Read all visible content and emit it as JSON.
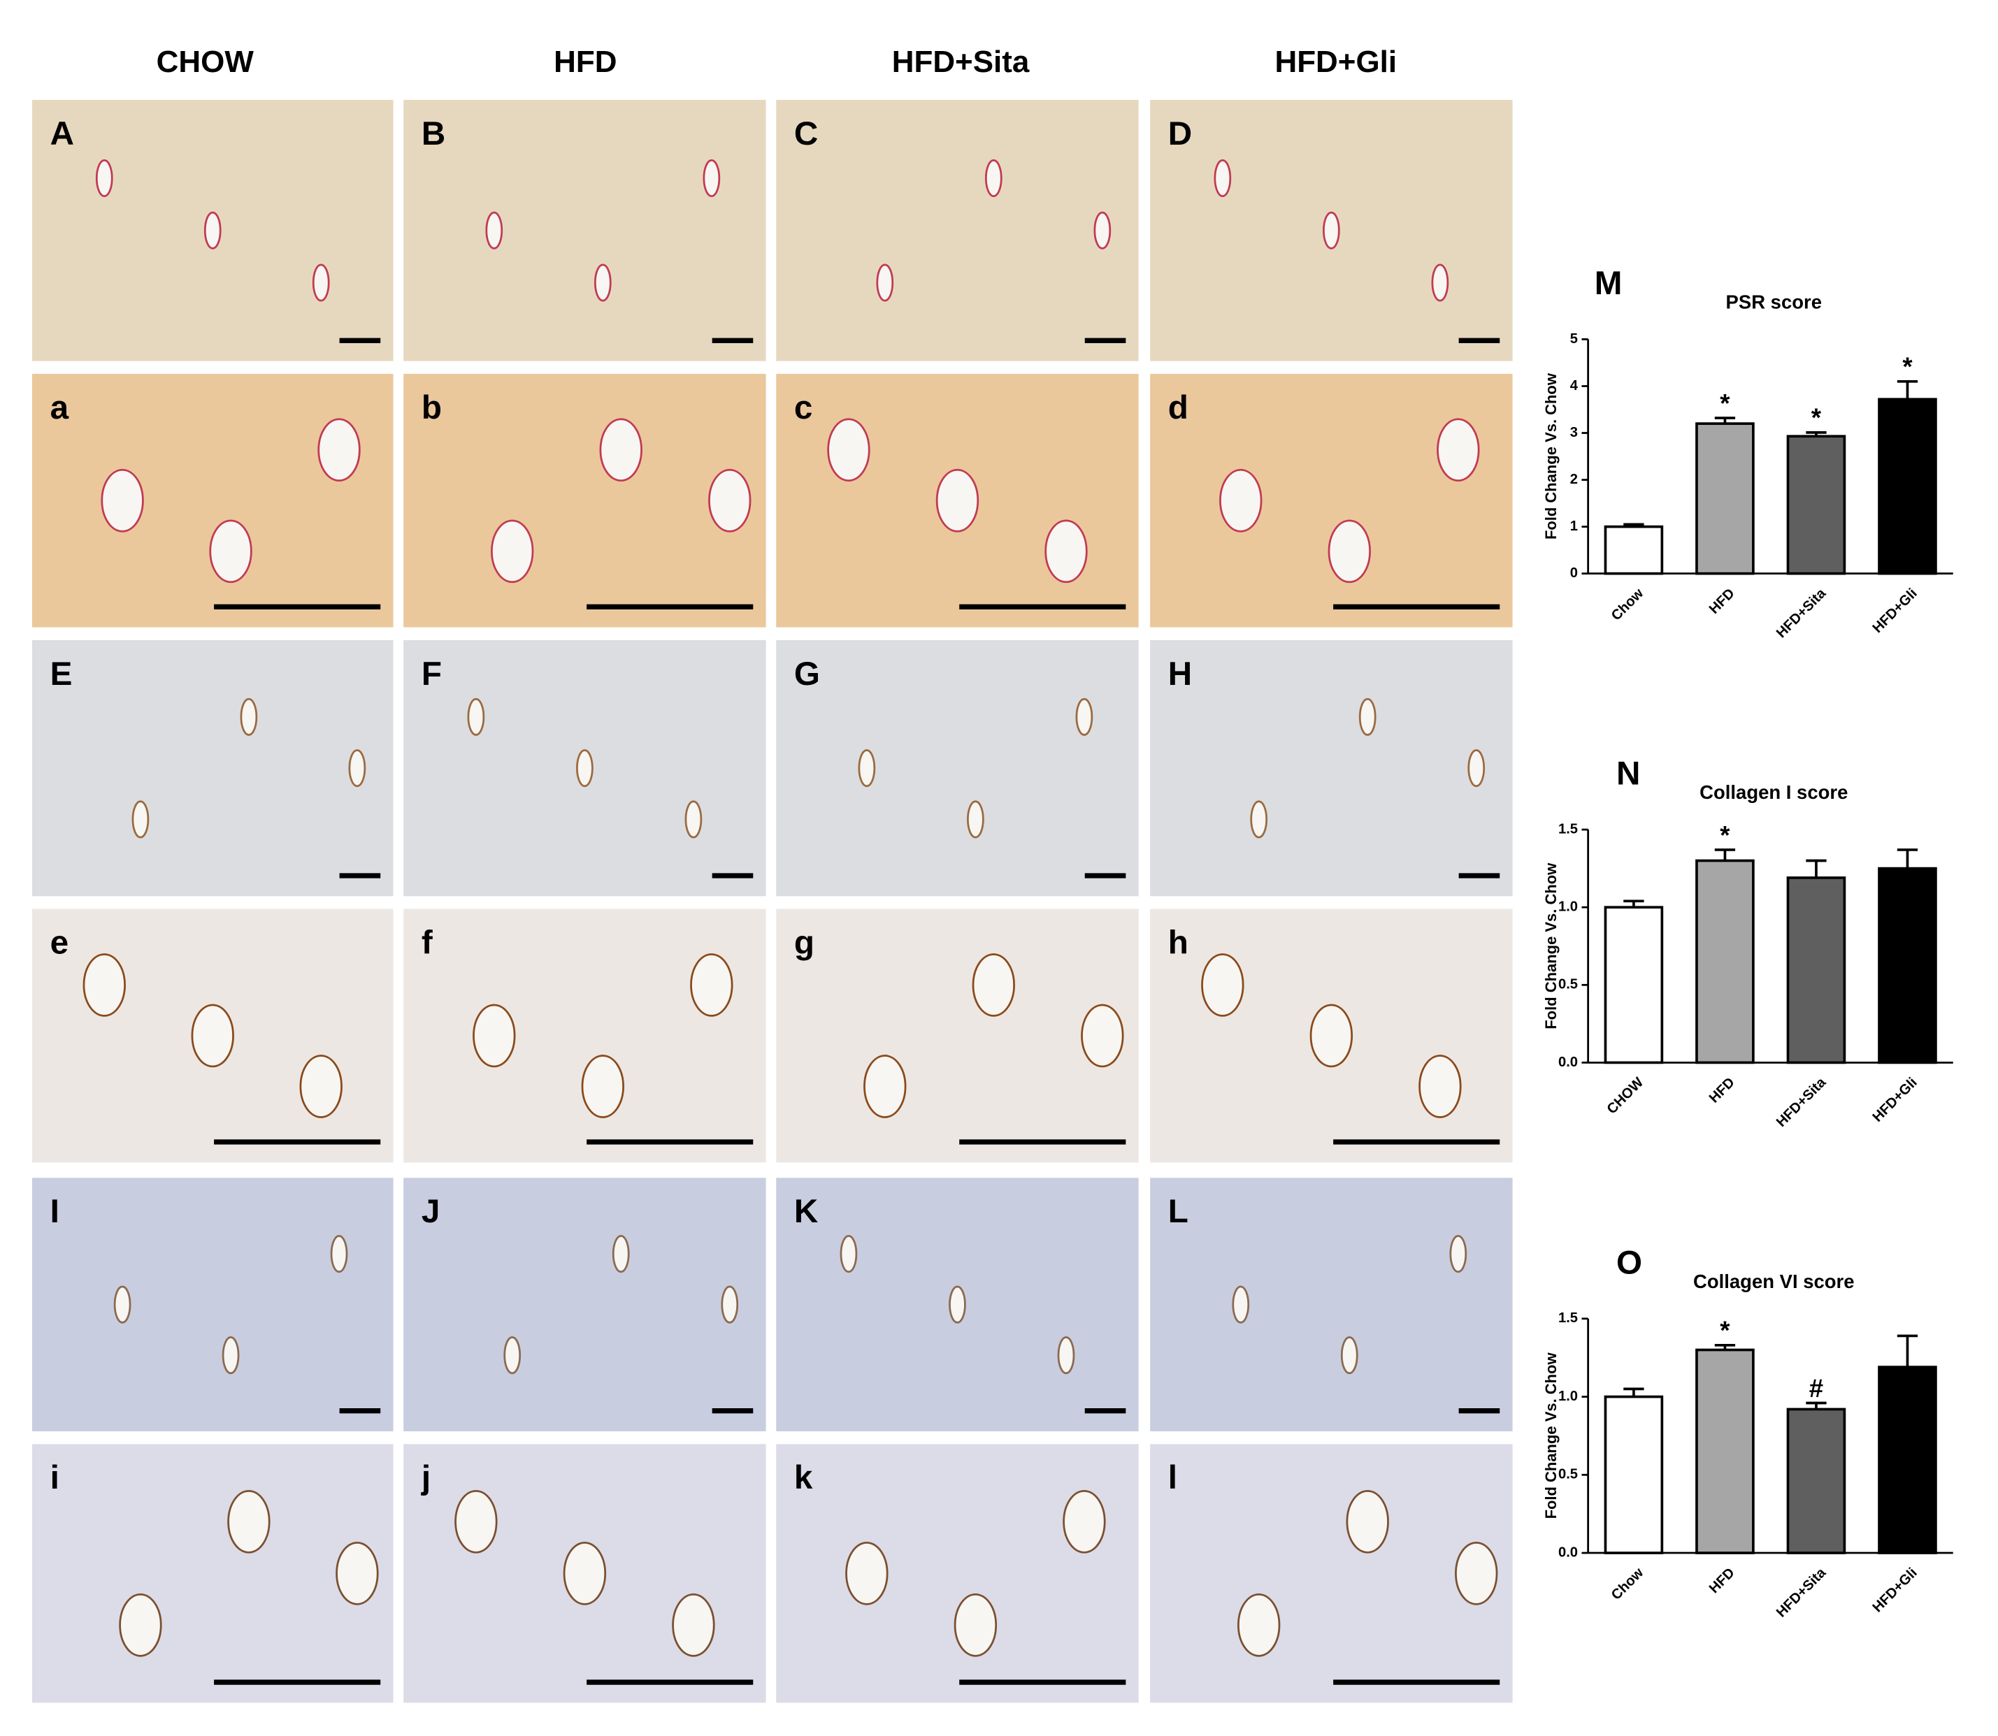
{
  "figure": {
    "columns": [
      "CHOW",
      "HFD",
      "HFD+Sita",
      "HFD+Gli"
    ],
    "panel_letters": [
      [
        "A",
        "B",
        "C",
        "D"
      ],
      [
        "a",
        "b",
        "c",
        "d"
      ],
      [
        "E",
        "F",
        "G",
        "H"
      ],
      [
        "e",
        "f",
        "g",
        "h"
      ],
      [
        "I",
        "J",
        "K",
        "L"
      ],
      [
        "i",
        "j",
        "k",
        "l"
      ]
    ]
  },
  "chart_data": [
    {
      "type": "bar",
      "panel": "M",
      "title": "PSR score",
      "y_label": "Fold Change Vs. Chow",
      "categories": [
        "Chow",
        "HFD",
        "HFD+Sita",
        "HFD+Gli"
      ],
      "values": [
        1.0,
        3.2,
        2.93,
        3.72
      ],
      "errors": [
        0.05,
        0.12,
        0.08,
        0.38
      ],
      "value_annotations": [
        null,
        "*",
        "*",
        "*"
      ],
      "colors": [
        "#ffffff",
        "#a6a6a6",
        "#5f5f5f",
        "#000000"
      ],
      "ylim": [
        0,
        5
      ],
      "yticks": [
        0,
        1,
        2,
        3,
        4,
        5
      ]
    },
    {
      "type": "bar",
      "panel": "N",
      "title": "Collagen I score",
      "y_label": "Fold Change Vs. Chow",
      "categories": [
        "CHOW",
        "HFD",
        "HFD+Sita",
        "HFD+Gli"
      ],
      "values": [
        1.0,
        1.3,
        1.19,
        1.25
      ],
      "errors": [
        0.04,
        0.07,
        0.11,
        0.12
      ],
      "value_annotations": [
        null,
        "*",
        null,
        null
      ],
      "colors": [
        "#ffffff",
        "#a6a6a6",
        "#5f5f5f",
        "#000000"
      ],
      "ylim": [
        0,
        1.5
      ],
      "yticks": [
        {
          "value": 0,
          "label": "0.0"
        },
        0.5,
        {
          "value": 1,
          "label": "1.0"
        },
        1.5
      ]
    },
    {
      "type": "bar",
      "panel": "O",
      "title": "Collagen VI score",
      "y_label": "Fold Change Vs. Chow",
      "categories": [
        "Chow",
        "HFD",
        "HFD+Sita",
        "HFD+Gli"
      ],
      "values": [
        1.0,
        1.3,
        0.92,
        1.19
      ],
      "errors": [
        0.05,
        0.03,
        0.04,
        0.2
      ],
      "value_annotations": [
        null,
        "*",
        "#",
        null
      ],
      "colors": [
        "#ffffff",
        "#a6a6a6",
        "#5f5f5f",
        "#000000"
      ],
      "ylim": [
        0,
        1.5
      ],
      "yticks": [
        {
          "value": 0,
          "label": "0.0"
        },
        0.5,
        {
          "value": 1,
          "label": "1.0"
        },
        1.5
      ]
    }
  ]
}
